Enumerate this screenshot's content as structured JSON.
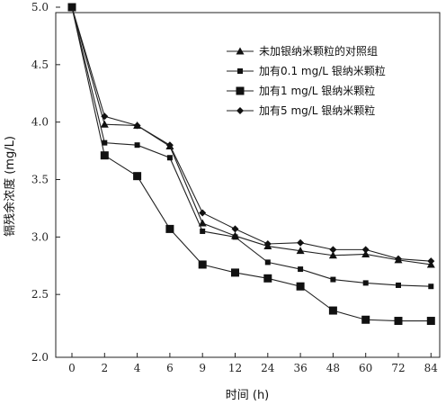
{
  "chart_data": {
    "type": "line",
    "xlabel": "时间 (h)",
    "ylabel": "镉残余浓度 (mg/L)",
    "categories": [
      "0",
      "2",
      "4",
      "6",
      "9",
      "12",
      "24",
      "36",
      "48",
      "60",
      "72",
      "84"
    ],
    "ylim": [
      2.0,
      5.0
    ],
    "yticks": [
      "2.0",
      "2.5",
      "3.0",
      "3.5",
      "4.0",
      "4.5",
      "5.0"
    ],
    "grid": false,
    "legend_position": "top-right",
    "series": [
      {
        "name": "未加银纳米颗粒的对照组",
        "marker": "triangle",
        "values": [
          5.0,
          3.98,
          3.97,
          3.79,
          3.12,
          3.01,
          2.92,
          2.88,
          2.84,
          2.85,
          2.8,
          2.76
        ]
      },
      {
        "name": "加有0.1 mg/L 银纳米颗粒",
        "marker": "small-square",
        "values": [
          5.0,
          3.82,
          3.8,
          3.69,
          3.05,
          3.0,
          2.78,
          2.72,
          2.63,
          2.6,
          2.58,
          2.57
        ]
      },
      {
        "name": "加有1 mg/L 银纳米颗粒",
        "marker": "large-square",
        "values": [
          5.0,
          3.71,
          3.53,
          3.07,
          2.76,
          2.69,
          2.64,
          2.57,
          2.36,
          2.28,
          2.27,
          2.27
        ]
      },
      {
        "name": "加有5 mg/L 银纳米颗粒",
        "marker": "diamond",
        "values": [
          5.0,
          4.05,
          3.97,
          3.8,
          3.21,
          3.07,
          2.94,
          2.95,
          2.89,
          2.89,
          2.81,
          2.79
        ]
      }
    ]
  }
}
